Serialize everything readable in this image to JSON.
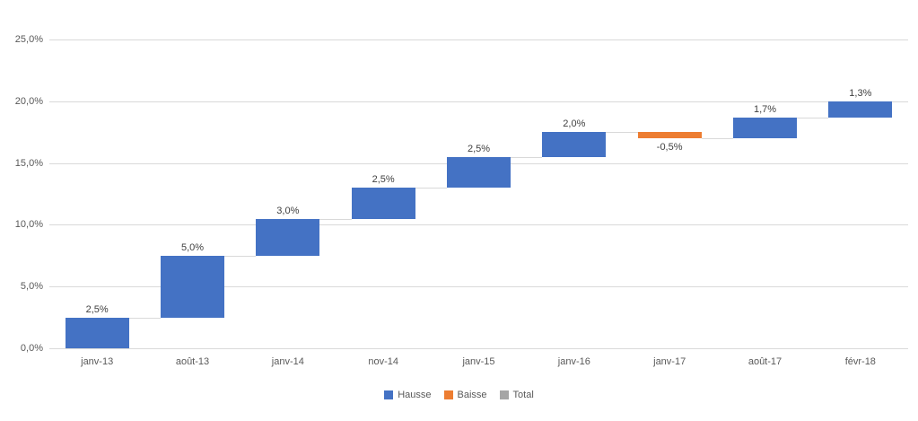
{
  "chart_data": {
    "type": "bar",
    "subtype": "waterfall",
    "title": "",
    "categories": [
      "janv-13",
      "août-13",
      "janv-14",
      "nov-14",
      "janv-15",
      "janv-16",
      "janv-17",
      "août-17",
      "févr-18"
    ],
    "bars": [
      {
        "category": "janv-13",
        "value": 2.5,
        "label": "2,5%",
        "start": 0.0,
        "end": 2.5,
        "kind": "increase"
      },
      {
        "category": "août-13",
        "value": 5.0,
        "label": "5,0%",
        "start": 2.5,
        "end": 7.5,
        "kind": "increase"
      },
      {
        "category": "janv-14",
        "value": 3.0,
        "label": "3,0%",
        "start": 7.5,
        "end": 10.5,
        "kind": "increase"
      },
      {
        "category": "nov-14",
        "value": 2.5,
        "label": "2,5%",
        "start": 10.5,
        "end": 13.0,
        "kind": "increase"
      },
      {
        "category": "janv-15",
        "value": 2.5,
        "label": "2,5%",
        "start": 13.0,
        "end": 15.5,
        "kind": "increase"
      },
      {
        "category": "janv-16",
        "value": 2.0,
        "label": "2,0%",
        "start": 15.5,
        "end": 17.5,
        "kind": "increase"
      },
      {
        "category": "janv-17",
        "value": -0.5,
        "label": "-0,5%",
        "start": 17.5,
        "end": 17.0,
        "kind": "decrease"
      },
      {
        "category": "août-17",
        "value": 1.7,
        "label": "1,7%",
        "start": 17.0,
        "end": 18.7,
        "kind": "increase"
      },
      {
        "category": "févr-18",
        "value": 1.3,
        "label": "1,3%",
        "start": 18.7,
        "end": 20.0,
        "kind": "increase"
      }
    ],
    "y_axis": {
      "ylim": [
        0,
        25
      ],
      "ticks": [
        {
          "value": 0,
          "label": "0,0%"
        },
        {
          "value": 5,
          "label": "5,0%"
        },
        {
          "value": 10,
          "label": "10,0%"
        },
        {
          "value": 15,
          "label": "15,0%"
        },
        {
          "value": 20,
          "label": "20,0%"
        },
        {
          "value": 25,
          "label": "25,0%"
        }
      ]
    },
    "grid": true,
    "legend": {
      "position": "bottom",
      "items": [
        {
          "label": "Hausse",
          "color": "#4472C4"
        },
        {
          "label": "Baisse",
          "color": "#ED7D31"
        },
        {
          "label": "Total",
          "color": "#A5A5A5"
        }
      ]
    },
    "colors": {
      "increase": "#4472C4",
      "decrease": "#ED7D31",
      "total": "#A5A5A5",
      "gridline": "#D9D9D9",
      "connector": "#D9D9D9",
      "axis_text": "#595959",
      "data_label": "#404040",
      "background": "#FFFFFF"
    }
  }
}
